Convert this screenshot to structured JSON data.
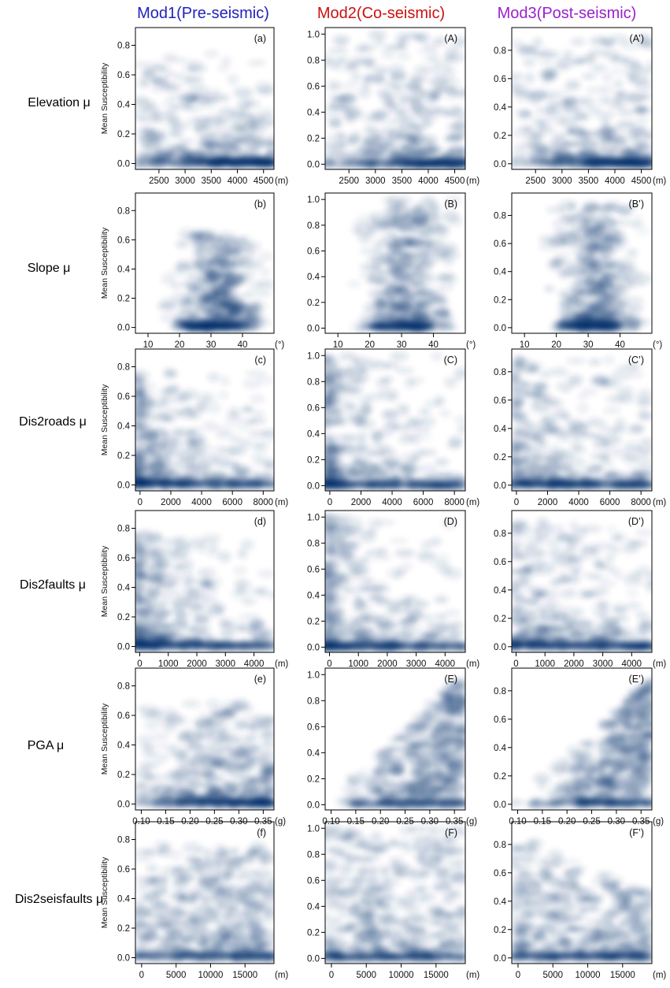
{
  "chart_data": {
    "type": "scatter",
    "style": "smoothed density scatter (blue)",
    "colors": {
      "mod1": "#2222bb",
      "mod2": "#cc1111",
      "mod3": "#9922cc",
      "density": "#08306b"
    },
    "columns": [
      {
        "title": "Mod1(Pre-seismic)",
        "color": "#2222bb"
      },
      {
        "title": "Mod2(Co-seismic)",
        "color": "#cc1111"
      },
      {
        "title": "Mod3(Post-seismic)",
        "color": "#9922cc"
      }
    ],
    "ylabel": "Mean Susceptibility",
    "rows": [
      {
        "label": "Elevation μ",
        "unit": "(m)",
        "xlim": [
          2050,
          4700
        ],
        "xticks": [
          2500,
          3000,
          3500,
          4000,
          4500
        ],
        "xtick_labels": [
          "2500",
          "3000",
          "3500",
          "4000",
          "4500"
        ],
        "panels": [
          {
            "label": "(a)",
            "ylim": [
              -0.04,
              0.92
            ],
            "yticks": [
              0.0,
              0.2,
              0.4,
              0.6,
              0.8
            ],
            "ytick_labels": [
              "0.0",
              "0.2",
              "0.4",
              "0.6",
              "0.8"
            ]
          },
          {
            "label": "(A)",
            "ylim": [
              -0.04,
              1.05
            ],
            "yticks": [
              0.0,
              0.2,
              0.4,
              0.6,
              0.8,
              1.0
            ],
            "ytick_labels": [
              "0.0",
              "0.2",
              "0.4",
              "0.6",
              "0.8",
              "1.0"
            ]
          },
          {
            "label": "(A’)",
            "ylim": [
              -0.04,
              0.96
            ],
            "yticks": [
              0.0,
              0.2,
              0.4,
              0.6,
              0.8
            ],
            "ytick_labels": [
              "0.0",
              "0.2",
              "0.4",
              "0.6",
              "0.8"
            ]
          }
        ]
      },
      {
        "label": "Slope μ",
        "unit": "(°)",
        "xlim": [
          6,
          50
        ],
        "xticks": [
          10,
          20,
          30,
          40
        ],
        "xtick_labels": [
          "10",
          "20",
          "30",
          "40"
        ],
        "panels": [
          {
            "label": "(b)",
            "ylim": [
              -0.04,
              0.92
            ],
            "yticks": [
              0.0,
              0.2,
              0.4,
              0.6,
              0.8
            ],
            "ytick_labels": [
              "0.0",
              "0.2",
              "0.4",
              "0.6",
              "0.8"
            ]
          },
          {
            "label": "(B)",
            "ylim": [
              -0.04,
              1.05
            ],
            "yticks": [
              0.0,
              0.2,
              0.4,
              0.6,
              0.8,
              1.0
            ],
            "ytick_labels": [
              "0.0",
              "0.2",
              "0.4",
              "0.6",
              "0.8",
              "1.0"
            ]
          },
          {
            "label": "(B’)",
            "ylim": [
              -0.04,
              0.96
            ],
            "yticks": [
              0.0,
              0.2,
              0.4,
              0.6,
              0.8
            ],
            "ytick_labels": [
              "0.0",
              "0.2",
              "0.4",
              "0.6",
              "0.8"
            ]
          }
        ]
      },
      {
        "label": "Dis2roads μ",
        "unit": "(m)",
        "xlim": [
          -300,
          8700
        ],
        "xticks": [
          0,
          2000,
          4000,
          6000,
          8000
        ],
        "xtick_labels": [
          "0",
          "2000",
          "4000",
          "6000",
          "8000"
        ],
        "panels": [
          {
            "label": "(c)",
            "ylim": [
              -0.04,
              0.92
            ],
            "yticks": [
              0.0,
              0.2,
              0.4,
              0.6,
              0.8
            ],
            "ytick_labels": [
              "0.0",
              "0.2",
              "0.4",
              "0.6",
              "0.8"
            ]
          },
          {
            "label": "(C)",
            "ylim": [
              -0.04,
              1.05
            ],
            "yticks": [
              0.0,
              0.2,
              0.4,
              0.6,
              0.8,
              1.0
            ],
            "ytick_labels": [
              "0.0",
              "0.2",
              "0.4",
              "0.6",
              "0.8",
              "1.0"
            ]
          },
          {
            "label": "(C’)",
            "ylim": [
              -0.04,
              0.96
            ],
            "yticks": [
              0.0,
              0.2,
              0.4,
              0.6,
              0.8
            ],
            "ytick_labels": [
              "0.0",
              "0.2",
              "0.4",
              "0.6",
              "0.8"
            ]
          }
        ]
      },
      {
        "label": "Dis2faults μ",
        "unit": "(m)",
        "xlim": [
          -150,
          4700
        ],
        "xticks": [
          0,
          1000,
          2000,
          3000,
          4000
        ],
        "xtick_labels": [
          "0",
          "1000",
          "2000",
          "3000",
          "4000"
        ],
        "panels": [
          {
            "label": "(d)",
            "ylim": [
              -0.04,
              0.92
            ],
            "yticks": [
              0.0,
              0.2,
              0.4,
              0.6,
              0.8
            ],
            "ytick_labels": [
              "0.0",
              "0.2",
              "0.4",
              "0.6",
              "0.8"
            ]
          },
          {
            "label": "(D)",
            "ylim": [
              -0.04,
              1.05
            ],
            "yticks": [
              0.0,
              0.2,
              0.4,
              0.6,
              0.8,
              1.0
            ],
            "ytick_labels": [
              "0.0",
              "0.2",
              "0.4",
              "0.6",
              "0.8",
              "1.0"
            ]
          },
          {
            "label": "(D’)",
            "ylim": [
              -0.04,
              0.96
            ],
            "yticks": [
              0.0,
              0.2,
              0.4,
              0.6,
              0.8
            ],
            "ytick_labels": [
              "0.0",
              "0.2",
              "0.4",
              "0.6",
              "0.8"
            ]
          }
        ]
      },
      {
        "label": "PGA μ",
        "unit": "(g)",
        "xlim": [
          0.088,
          0.372
        ],
        "xticks": [
          0.1,
          0.15,
          0.2,
          0.25,
          0.3,
          0.35
        ],
        "xtick_labels": [
          "0.10",
          "0.15",
          "0.20",
          "0.25",
          "0.30",
          "0.35"
        ],
        "panels": [
          {
            "label": "(e)",
            "ylim": [
              -0.04,
              0.92
            ],
            "yticks": [
              0.0,
              0.2,
              0.4,
              0.6,
              0.8
            ],
            "ytick_labels": [
              "0.0",
              "0.2",
              "0.4",
              "0.6",
              "0.8"
            ]
          },
          {
            "label": "(E)",
            "ylim": [
              -0.04,
              1.05
            ],
            "yticks": [
              0.0,
              0.2,
              0.4,
              0.6,
              0.8,
              1.0
            ],
            "ytick_labels": [
              "0.0",
              "0.2",
              "0.4",
              "0.6",
              "0.8",
              "1.0"
            ]
          },
          {
            "label": "(E’)",
            "ylim": [
              -0.04,
              0.96
            ],
            "yticks": [
              0.0,
              0.2,
              0.4,
              0.6,
              0.8
            ],
            "ytick_labels": [
              "0.0",
              "0.2",
              "0.4",
              "0.6",
              "0.8"
            ]
          }
        ]
      },
      {
        "label": "Dis2seisfaults μ",
        "unit": "(m)",
        "xlim": [
          -900,
          19200
        ],
        "xticks": [
          0,
          5000,
          10000,
          15000
        ],
        "xtick_labels": [
          "0",
          "5000",
          "10000",
          "15000"
        ],
        "panels": [
          {
            "label": "(f)",
            "ylim": [
              -0.04,
              0.92
            ],
            "yticks": [
              0.0,
              0.2,
              0.4,
              0.6,
              0.8
            ],
            "ytick_labels": [
              "0.0",
              "0.2",
              "0.4",
              "0.6",
              "0.8"
            ]
          },
          {
            "label": "(F)",
            "ylim": [
              -0.04,
              1.05
            ],
            "yticks": [
              0.0,
              0.2,
              0.4,
              0.6,
              0.8,
              1.0
            ],
            "ytick_labels": [
              "0.0",
              "0.2",
              "0.4",
              "0.6",
              "0.8",
              "1.0"
            ]
          },
          {
            "label": "(F’)",
            "ylim": [
              -0.04,
              0.96
            ],
            "yticks": [
              0.0,
              0.2,
              0.4,
              0.6,
              0.8
            ],
            "ytick_labels": [
              "0.0",
              "0.2",
              "0.4",
              "0.6",
              "0.8"
            ]
          }
        ]
      }
    ]
  }
}
